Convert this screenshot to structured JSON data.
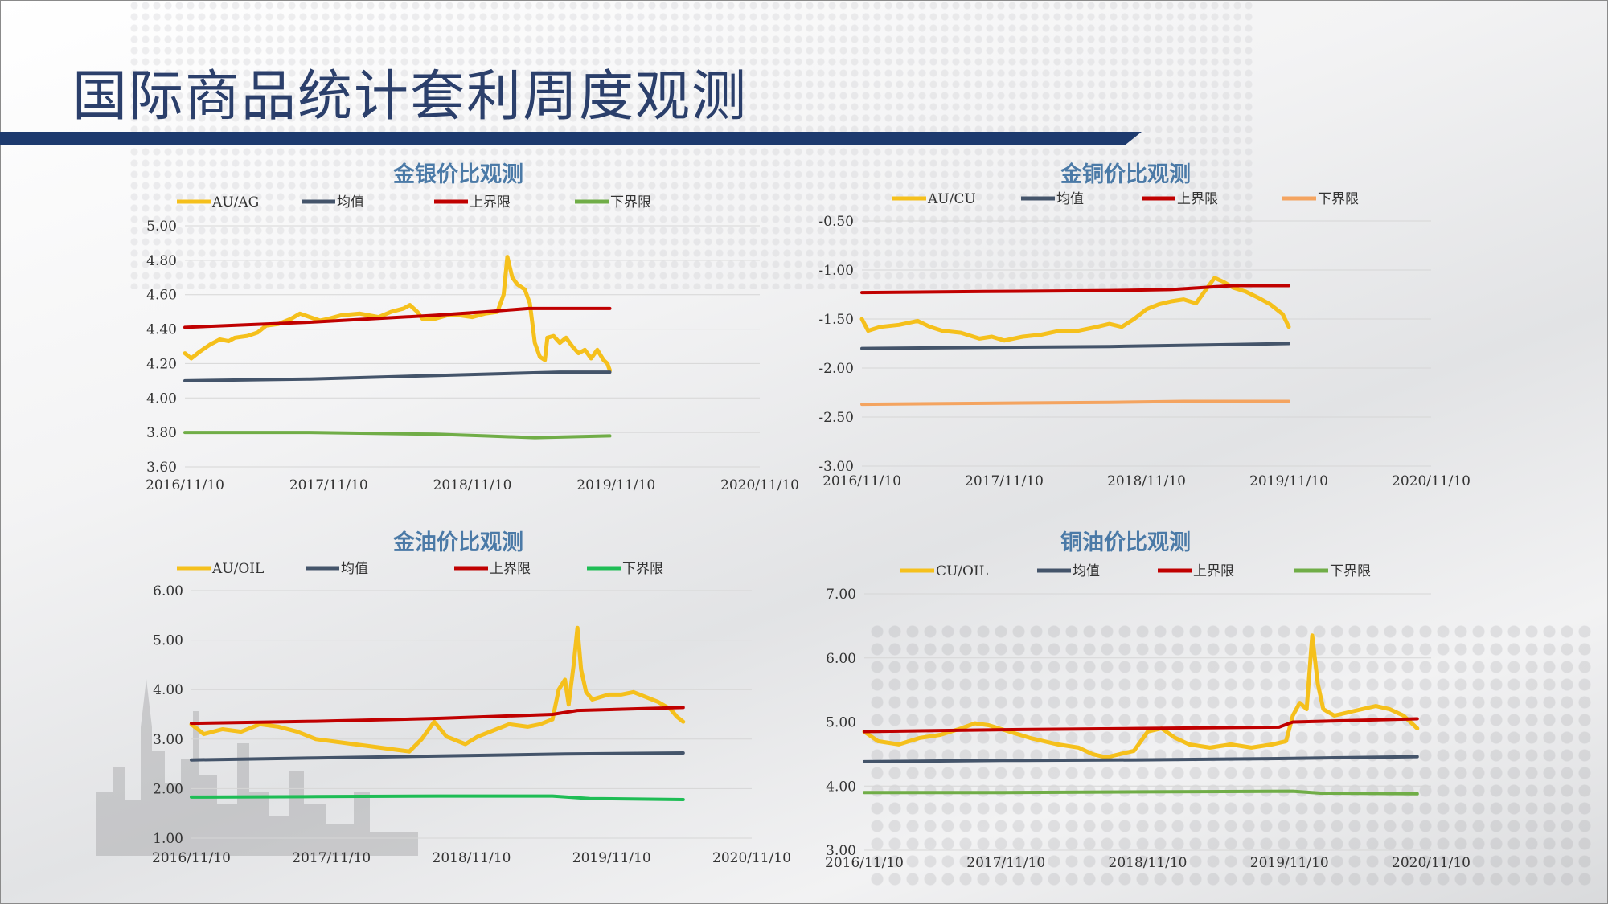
{
  "page": {
    "title": "国际商品统计套利周度观测"
  },
  "colors": {
    "title": "#2b3f6b",
    "chart_title": "#4b7aa7",
    "grid": "#d6d6d6",
    "bar_navy": "#1d3a6e"
  },
  "chart_data": [
    {
      "id": "au-ag",
      "type": "line",
      "title": "金银价比观测",
      "x_labels": [
        "2016/11/10",
        "2017/11/10",
        "2018/11/10",
        "2019/11/10",
        "2020/11/10"
      ],
      "y_ticks": [
        "5.00",
        "4.80",
        "4.60",
        "4.40",
        "4.20",
        "4.00",
        "3.80",
        "3.60"
      ],
      "ylim": [
        3.6,
        5.0
      ],
      "grid": true,
      "legend_position": "top",
      "series": [
        {
          "name": "AU/AG",
          "color": "#f5c01c",
          "width": 5,
          "values": [
            [
              0,
              4.26
            ],
            [
              0.05,
              4.23
            ],
            [
              0.12,
              4.27
            ],
            [
              0.2,
              4.31
            ],
            [
              0.28,
              4.34
            ],
            [
              0.35,
              4.33
            ],
            [
              0.4,
              4.35
            ],
            [
              0.5,
              4.36
            ],
            [
              0.58,
              4.38
            ],
            [
              0.65,
              4.42
            ],
            [
              0.75,
              4.43
            ],
            [
              0.85,
              4.46
            ],
            [
              0.92,
              4.49
            ],
            [
              1.0,
              4.47
            ],
            [
              1.08,
              4.45
            ],
            [
              1.15,
              4.46
            ],
            [
              1.25,
              4.48
            ],
            [
              1.4,
              4.49
            ],
            [
              1.55,
              4.47
            ],
            [
              1.65,
              4.5
            ],
            [
              1.75,
              4.52
            ],
            [
              1.8,
              4.54
            ],
            [
              1.86,
              4.5
            ],
            [
              1.9,
              4.46
            ],
            [
              2.0,
              4.46
            ],
            [
              2.1,
              4.48
            ],
            [
              2.2,
              4.48
            ],
            [
              2.3,
              4.47
            ],
            [
              2.4,
              4.49
            ],
            [
              2.5,
              4.5
            ],
            [
              2.55,
              4.6
            ],
            [
              2.58,
              4.82
            ],
            [
              2.62,
              4.7
            ],
            [
              2.66,
              4.66
            ],
            [
              2.72,
              4.63
            ],
            [
              2.76,
              4.55
            ],
            [
              2.8,
              4.32
            ],
            [
              2.84,
              4.24
            ],
            [
              2.88,
              4.22
            ],
            [
              2.9,
              4.35
            ],
            [
              2.95,
              4.36
            ],
            [
              3.0,
              4.32
            ],
            [
              3.05,
              4.35
            ],
            [
              3.1,
              4.3
            ],
            [
              3.15,
              4.26
            ],
            [
              3.2,
              4.28
            ],
            [
              3.25,
              4.23
            ],
            [
              3.3,
              4.28
            ],
            [
              3.35,
              4.22
            ],
            [
              3.38,
              4.2
            ],
            [
              3.4,
              4.16
            ]
          ]
        },
        {
          "name": "均值",
          "color": "#44546a",
          "width": 4,
          "values": [
            [
              0,
              4.1
            ],
            [
              1.0,
              4.11
            ],
            [
              2.0,
              4.13
            ],
            [
              3.0,
              4.15
            ],
            [
              3.4,
              4.15
            ]
          ]
        },
        {
          "name": "上界限",
          "color": "#c00000",
          "width": 4,
          "values": [
            [
              0,
              4.41
            ],
            [
              1.0,
              4.44
            ],
            [
              2.0,
              4.48
            ],
            [
              2.4,
              4.5
            ],
            [
              2.75,
              4.52
            ],
            [
              3.4,
              4.52
            ]
          ]
        },
        {
          "name": "下界限",
          "color": "#70ad47",
          "width": 4,
          "values": [
            [
              0,
              3.8
            ],
            [
              1.0,
              3.8
            ],
            [
              2.0,
              3.79
            ],
            [
              2.4,
              3.78
            ],
            [
              2.8,
              3.77
            ],
            [
              3.4,
              3.78
            ]
          ]
        }
      ]
    },
    {
      "id": "au-cu",
      "type": "line",
      "title": "金铜价比观测",
      "x_labels": [
        "2016/11/10",
        "2017/11/10",
        "2018/11/10",
        "2019/11/10",
        "2020/11/10"
      ],
      "y_ticks": [
        "-0.50",
        "-1.00",
        "-1.50",
        "-2.00",
        "-2.50",
        "-3.00"
      ],
      "ylim": [
        -3.0,
        -0.5
      ],
      "grid": true,
      "legend_position": "top",
      "series": [
        {
          "name": "AU/CU",
          "color": "#f5c01c",
          "width": 5,
          "values": [
            [
              0,
              -1.5
            ],
            [
              0.05,
              -1.62
            ],
            [
              0.15,
              -1.58
            ],
            [
              0.3,
              -1.56
            ],
            [
              0.45,
              -1.52
            ],
            [
              0.55,
              -1.58
            ],
            [
              0.65,
              -1.62
            ],
            [
              0.8,
              -1.64
            ],
            [
              0.95,
              -1.7
            ],
            [
              1.05,
              -1.68
            ],
            [
              1.15,
              -1.72
            ],
            [
              1.3,
              -1.68
            ],
            [
              1.45,
              -1.66
            ],
            [
              1.6,
              -1.62
            ],
            [
              1.75,
              -1.62
            ],
            [
              1.9,
              -1.58
            ],
            [
              2.0,
              -1.55
            ],
            [
              2.1,
              -1.58
            ],
            [
              2.2,
              -1.5
            ],
            [
              2.3,
              -1.4
            ],
            [
              2.4,
              -1.35
            ],
            [
              2.5,
              -1.32
            ],
            [
              2.6,
              -1.3
            ],
            [
              2.7,
              -1.34
            ],
            [
              2.78,
              -1.2
            ],
            [
              2.85,
              -1.08
            ],
            [
              2.92,
              -1.12
            ],
            [
              3.0,
              -1.18
            ],
            [
              3.1,
              -1.22
            ],
            [
              3.2,
              -1.28
            ],
            [
              3.3,
              -1.35
            ],
            [
              3.4,
              -1.45
            ],
            [
              3.45,
              -1.58
            ]
          ]
        },
        {
          "name": "均值",
          "color": "#44546a",
          "width": 4,
          "values": [
            [
              0,
              -1.8
            ],
            [
              1.0,
              -1.79
            ],
            [
              2.0,
              -1.78
            ],
            [
              3.0,
              -1.76
            ],
            [
              3.45,
              -1.75
            ]
          ]
        },
        {
          "name": "上界限",
          "color": "#c00000",
          "width": 4,
          "values": [
            [
              0,
              -1.23
            ],
            [
              1.0,
              -1.22
            ],
            [
              2.0,
              -1.21
            ],
            [
              2.5,
              -1.2
            ],
            [
              3.0,
              -1.16
            ],
            [
              3.45,
              -1.16
            ]
          ]
        },
        {
          "name": "下界限",
          "color": "#f4a460",
          "width": 4,
          "values": [
            [
              0,
              -2.37
            ],
            [
              1.0,
              -2.36
            ],
            [
              2.0,
              -2.35
            ],
            [
              2.6,
              -2.34
            ],
            [
              3.45,
              -2.34
            ]
          ]
        }
      ]
    },
    {
      "id": "au-oil",
      "type": "line",
      "title": "金油价比观测",
      "x_labels": [
        "2016/11/10",
        "2017/11/10",
        "2018/11/10",
        "2019/11/10",
        "2020/11/10"
      ],
      "y_ticks": [
        "6.00",
        "5.00",
        "4.00",
        "3.00",
        "2.00",
        "1.00"
      ],
      "ylim": [
        1.0,
        6.0
      ],
      "grid": true,
      "legend_position": "top",
      "series": [
        {
          "name": "AU/OIL",
          "color": "#f5c01c",
          "width": 5,
          "values": [
            [
              0,
              3.3
            ],
            [
              0.1,
              3.1
            ],
            [
              0.25,
              3.2
            ],
            [
              0.4,
              3.15
            ],
            [
              0.55,
              3.3
            ],
            [
              0.7,
              3.25
            ],
            [
              0.85,
              3.15
            ],
            [
              1.0,
              3.0
            ],
            [
              1.15,
              2.95
            ],
            [
              1.3,
              2.9
            ],
            [
              1.45,
              2.85
            ],
            [
              1.6,
              2.8
            ],
            [
              1.75,
              2.75
            ],
            [
              1.85,
              3.0
            ],
            [
              1.95,
              3.35
            ],
            [
              2.05,
              3.05
            ],
            [
              2.2,
              2.9
            ],
            [
              2.3,
              3.05
            ],
            [
              2.45,
              3.2
            ],
            [
              2.55,
              3.3
            ],
            [
              2.7,
              3.25
            ],
            [
              2.8,
              3.3
            ],
            [
              2.9,
              3.4
            ],
            [
              2.95,
              4.0
            ],
            [
              3.0,
              4.2
            ],
            [
              3.03,
              3.7
            ],
            [
              3.07,
              4.5
            ],
            [
              3.1,
              5.25
            ],
            [
              3.13,
              4.4
            ],
            [
              3.17,
              3.95
            ],
            [
              3.22,
              3.8
            ],
            [
              3.35,
              3.9
            ],
            [
              3.45,
              3.9
            ],
            [
              3.55,
              3.95
            ],
            [
              3.65,
              3.85
            ],
            [
              3.75,
              3.75
            ],
            [
              3.85,
              3.6
            ],
            [
              3.9,
              3.45
            ],
            [
              3.95,
              3.35
            ]
          ]
        },
        {
          "name": "均值",
          "color": "#44546a",
          "width": 4,
          "values": [
            [
              0,
              2.58
            ],
            [
              1.0,
              2.62
            ],
            [
              2.0,
              2.66
            ],
            [
              3.0,
              2.7
            ],
            [
              3.95,
              2.72
            ]
          ]
        },
        {
          "name": "上界限",
          "color": "#c00000",
          "width": 4,
          "values": [
            [
              0,
              3.32
            ],
            [
              1.0,
              3.36
            ],
            [
              2.0,
              3.42
            ],
            [
              2.9,
              3.5
            ],
            [
              3.1,
              3.58
            ],
            [
              3.95,
              3.64
            ]
          ]
        },
        {
          "name": "下界限",
          "color": "#1ebd55",
          "width": 4,
          "values": [
            [
              0,
              1.83
            ],
            [
              1.0,
              1.84
            ],
            [
              2.0,
              1.85
            ],
            [
              2.9,
              1.85
            ],
            [
              3.2,
              1.8
            ],
            [
              3.95,
              1.78
            ]
          ]
        }
      ]
    },
    {
      "id": "cu-oil",
      "type": "line",
      "title": "铜油价比观测",
      "x_labels": [
        "2016/11/10",
        "2017/11/10",
        "2018/11/10",
        "2019/11/10",
        "2020/11/10"
      ],
      "y_ticks": [
        "7.00",
        "6.00",
        "5.00",
        "4.00",
        "3.00"
      ],
      "ylim": [
        3.0,
        7.0
      ],
      "grid": true,
      "legend_position": "top",
      "series": [
        {
          "name": "CU/OIL",
          "color": "#f5c01c",
          "width": 5,
          "values": [
            [
              0,
              4.85
            ],
            [
              0.1,
              4.7
            ],
            [
              0.25,
              4.65
            ],
            [
              0.4,
              4.75
            ],
            [
              0.55,
              4.8
            ],
            [
              0.7,
              4.9
            ],
            [
              0.8,
              4.98
            ],
            [
              0.9,
              4.95
            ],
            [
              1.05,
              4.85
            ],
            [
              1.2,
              4.75
            ],
            [
              1.4,
              4.65
            ],
            [
              1.55,
              4.6
            ],
            [
              1.65,
              4.5
            ],
            [
              1.75,
              4.45
            ],
            [
              1.85,
              4.5
            ],
            [
              1.95,
              4.55
            ],
            [
              2.05,
              4.85
            ],
            [
              2.15,
              4.9
            ],
            [
              2.25,
              4.75
            ],
            [
              2.35,
              4.65
            ],
            [
              2.5,
              4.6
            ],
            [
              2.65,
              4.65
            ],
            [
              2.8,
              4.6
            ],
            [
              2.95,
              4.65
            ],
            [
              3.05,
              4.7
            ],
            [
              3.1,
              5.1
            ],
            [
              3.15,
              5.3
            ],
            [
              3.2,
              5.2
            ],
            [
              3.24,
              6.35
            ],
            [
              3.28,
              5.6
            ],
            [
              3.32,
              5.2
            ],
            [
              3.4,
              5.1
            ],
            [
              3.5,
              5.15
            ],
            [
              3.6,
              5.2
            ],
            [
              3.7,
              5.25
            ],
            [
              3.8,
              5.2
            ],
            [
              3.9,
              5.1
            ],
            [
              3.95,
              5.0
            ],
            [
              4.0,
              4.9
            ]
          ]
        },
        {
          "name": "均值",
          "color": "#44546a",
          "width": 4,
          "values": [
            [
              0,
              4.38
            ],
            [
              1.0,
              4.4
            ],
            [
              2.0,
              4.41
            ],
            [
              3.0,
              4.43
            ],
            [
              4.0,
              4.46
            ]
          ]
        },
        {
          "name": "上界限",
          "color": "#c00000",
          "width": 4,
          "values": [
            [
              0,
              4.85
            ],
            [
              1.0,
              4.88
            ],
            [
              2.0,
              4.9
            ],
            [
              3.0,
              4.92
            ],
            [
              3.1,
              5.0
            ],
            [
              4.0,
              5.05
            ]
          ]
        },
        {
          "name": "下界限",
          "color": "#70ad47",
          "width": 4,
          "values": [
            [
              0,
              3.9
            ],
            [
              1.0,
              3.9
            ],
            [
              2.0,
              3.91
            ],
            [
              3.1,
              3.92
            ],
            [
              3.3,
              3.89
            ],
            [
              4.0,
              3.88
            ]
          ]
        }
      ]
    }
  ]
}
